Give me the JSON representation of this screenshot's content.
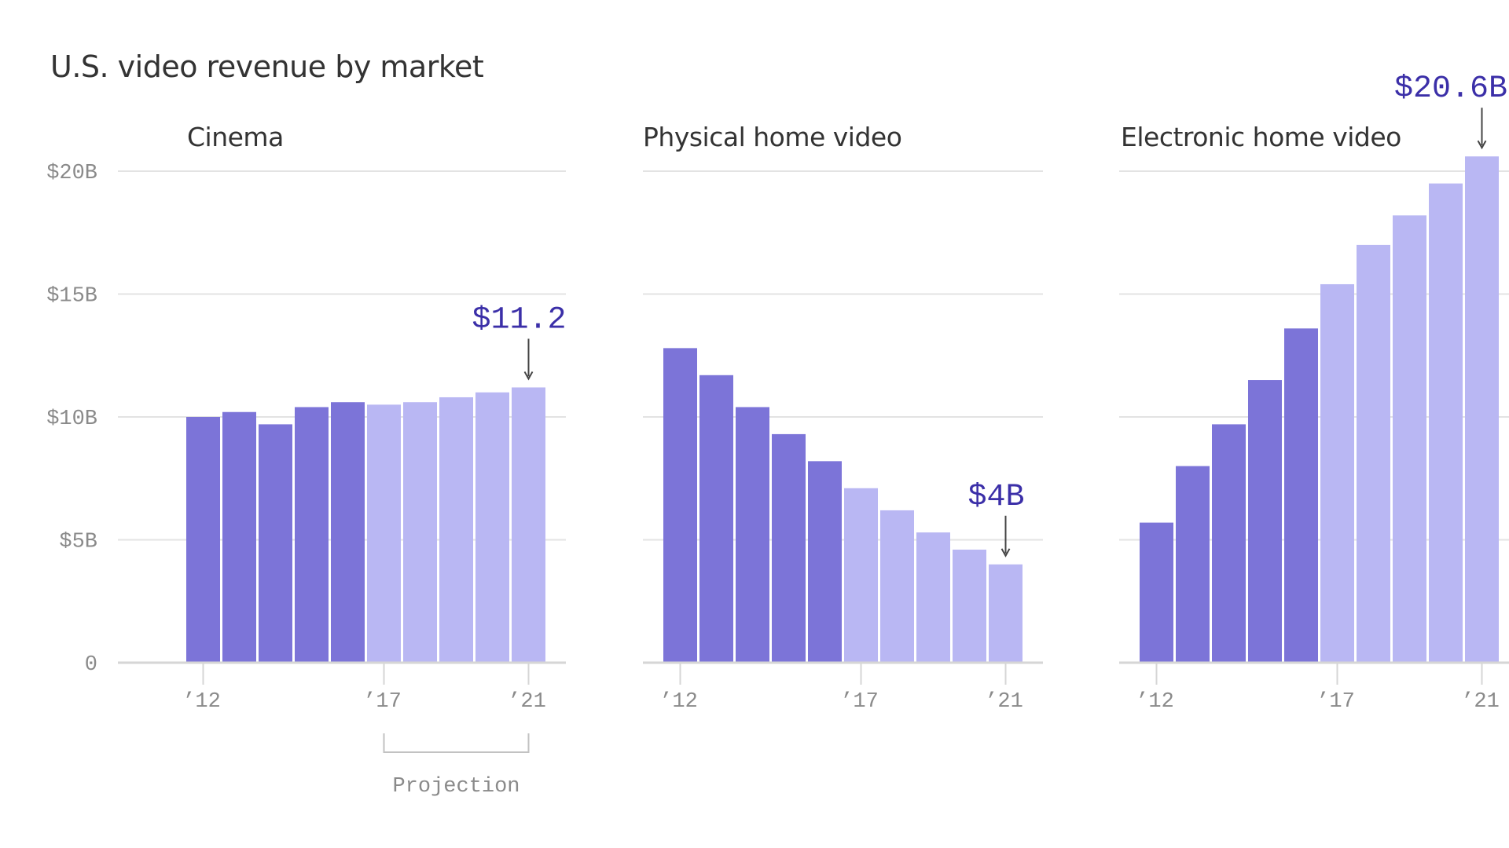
{
  "title": "U.S. video revenue by market",
  "colors": {
    "actual": "#7c74d8",
    "projection": "#b9b7f3"
  },
  "projection_label": "Projection",
  "chart_data": {
    "type": "bar",
    "title": "U.S. video revenue by market",
    "y_ticks": [
      {
        "value": 0,
        "label": "0"
      },
      {
        "value": 5,
        "label": "$5B"
      },
      {
        "value": 10,
        "label": "$10B"
      },
      {
        "value": 15,
        "label": "$15B"
      },
      {
        "value": 20,
        "label": "$20B"
      }
    ],
    "ylim": [
      0,
      20
    ],
    "x_ticks": [
      {
        "year": 2012,
        "label": "’12"
      },
      {
        "year": 2017,
        "label": "’17"
      },
      {
        "year": 2021,
        "label": "’21"
      }
    ],
    "years": [
      2012,
      2013,
      2014,
      2015,
      2016,
      2017,
      2018,
      2019,
      2020,
      2021
    ],
    "projection_start": 2017,
    "panels": [
      {
        "name": "Cinema",
        "values": [
          10.0,
          10.2,
          9.7,
          10.4,
          10.6,
          10.5,
          10.6,
          10.8,
          11.0,
          11.2
        ],
        "annotation": "$11.2"
      },
      {
        "name": "Physical home video",
        "values": [
          12.8,
          11.7,
          10.4,
          9.3,
          8.2,
          7.1,
          6.2,
          5.3,
          4.6,
          4.0
        ],
        "annotation": "$4B"
      },
      {
        "name": "Electronic home video",
        "values": [
          5.7,
          8.0,
          9.7,
          11.5,
          13.6,
          15.4,
          17.0,
          18.2,
          19.5,
          20.6
        ],
        "annotation": "$20.6B"
      }
    ]
  }
}
